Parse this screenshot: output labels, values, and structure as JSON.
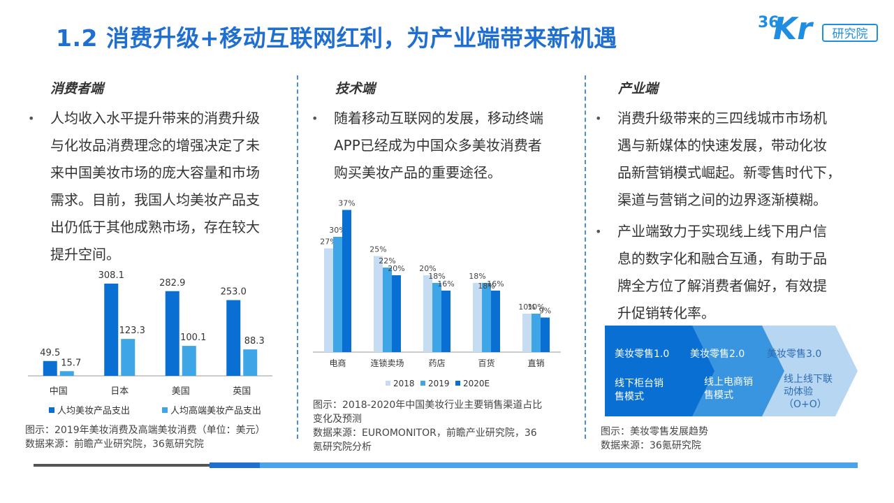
{
  "header": {
    "title": "1.2 消费升级+移动互联网红利，为产业端带来新机遇",
    "logo_brand_num": "36",
    "logo_brand_kr": "Kr",
    "logo_sub": "研究院"
  },
  "columns": {
    "consumer": {
      "heading": "消费者端",
      "bullet_lines": [
        "人均收入水平提升带来的消费升级",
        "与化妆品消费理念的增强决定了未",
        "来中国美妆市场的庞大容量和市场",
        "需求。目前，我国人均美妆产品支",
        "出仍低于其他成熟市场，存在较大",
        "提升空间。"
      ],
      "caption_line1": "图示：2019年美妆消费及高端美妆消费（单位：美元）",
      "caption_line2": "数据来源：前瞻产业研究院，36氪研究院"
    },
    "tech": {
      "heading": "技术端",
      "bullet_lines": [
        "随着移动互联网的发展，移动终端",
        "APP已经成为中国众多美妆消费者",
        "购买美妆产品的重要途径。"
      ],
      "caption_line1": "图示：2018-2020年中国美妆行业主要销售渠道占比",
      "caption_line2": "变化及预测",
      "caption_line3": "数据来源：EUROMONITOR，前瞻产业研究院，36",
      "caption_line4": "氪研究院分析"
    },
    "industry": {
      "heading": "产业端",
      "bullet1_lines": [
        "消费升级带来的三四线城市市场机",
        "遇与新媒体的快速发展，带动化妆",
        "品新营销模式崛起。新零售时代下，",
        "渠道与营销之间的边界逐渐模糊。"
      ],
      "bullet2_lines": [
        "产业端致力于实现线上线下用户信",
        "息的数字化和融合互通，有助于品",
        "牌全方位了解消费者偏好，有效提",
        "升促销转化率。"
      ],
      "caption_line1": "图示：美妆零售发展趋势",
      "caption_line2": "数据来源：36氪研究院"
    }
  },
  "bullet_symbol": "•",
  "retail_stages": [
    {
      "name": "美妆零售1.0",
      "desc_lines": [
        "线下柜台销",
        "售模式"
      ]
    },
    {
      "name": "美妆零售2.0",
      "desc_lines": [
        "线上电商销",
        "售模式"
      ]
    },
    {
      "name": "美妆零售3.0",
      "desc_lines": [
        "线上线下联",
        "动体验",
        "（O+O）"
      ]
    }
  ],
  "colors": {
    "title": "#1f6fd1",
    "dark_blue": "#0a6fd3",
    "mid_blue": "#3ea6e6",
    "light_blue": "#c6dcf2",
    "stage1": "#0a6fd3",
    "stage2": "#3a95e0",
    "stage3": "#b7d6f2"
  },
  "chart_data": [
    {
      "type": "bar",
      "categories": [
        "中国",
        "日本",
        "美国",
        "英国"
      ],
      "series": [
        {
          "name": "人均美妆产品支出",
          "values": [
            49.5,
            308.1,
            282.9,
            253.0
          ],
          "labels": [
            "49.5",
            "308.1",
            "282.9",
            "253.0"
          ],
          "color": "#0a6fd3"
        },
        {
          "name": "人均高端美妆产品支出",
          "values": [
            15.7,
            123.3,
            100.1,
            88.3
          ],
          "labels": [
            "15.7",
            "123.3",
            "100.1",
            "88.3"
          ],
          "color": "#3ea6e6"
        }
      ],
      "ylim": [
        0,
        350
      ],
      "legend": "bottom"
    },
    {
      "type": "bar",
      "categories": [
        "电商",
        "连锁卖场",
        "药店",
        "百货",
        "直销"
      ],
      "series": [
        {
          "name": "2018",
          "values": [
            27,
            25,
            20,
            18,
            10
          ],
          "color": "#c6dcf2"
        },
        {
          "name": "2019",
          "values": [
            30,
            22,
            18,
            18,
            10
          ],
          "color": "#3ea6e6"
        },
        {
          "name": "2020E",
          "values": [
            37,
            20,
            16,
            16,
            9
          ],
          "color": "#0a6fd3"
        }
      ],
      "value_suffix": "%",
      "ylim": [
        0,
        40
      ],
      "legend": "bottom"
    }
  ]
}
